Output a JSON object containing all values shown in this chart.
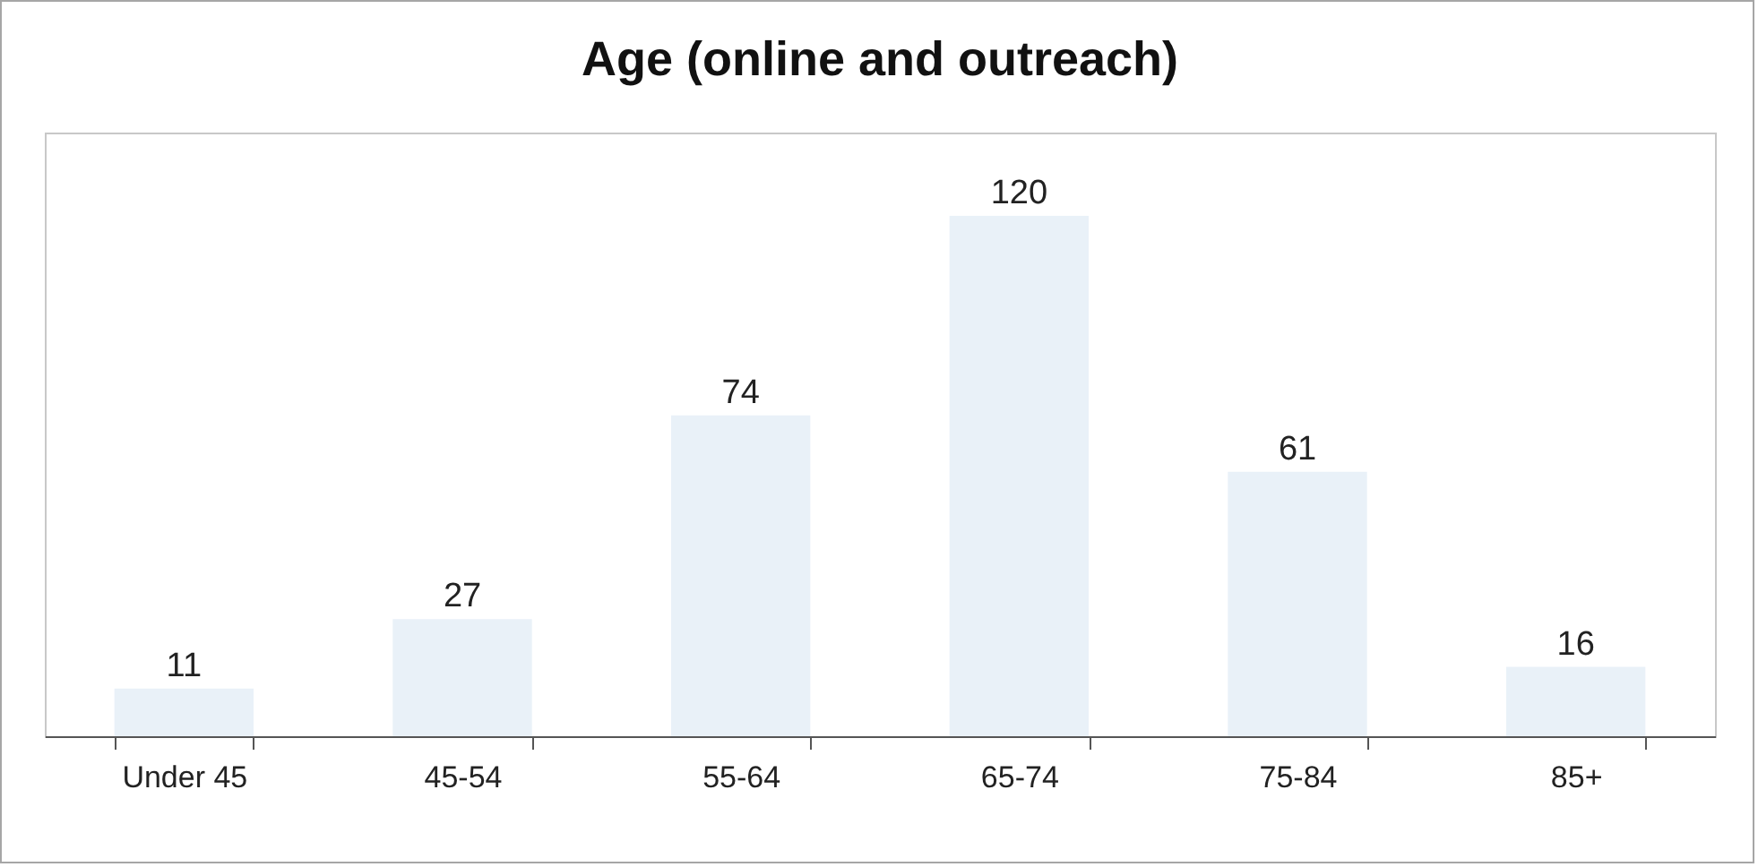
{
  "chart_data": {
    "type": "bar",
    "title": "Age (online and outreach)",
    "categories": [
      "Under 45",
      "45-54",
      "55-64",
      "65-74",
      "75-84",
      "85+"
    ],
    "values": [
      11,
      27,
      74,
      120,
      61,
      16
    ],
    "color": "#e9f1f8",
    "data_labels": true,
    "grid": false
  }
}
